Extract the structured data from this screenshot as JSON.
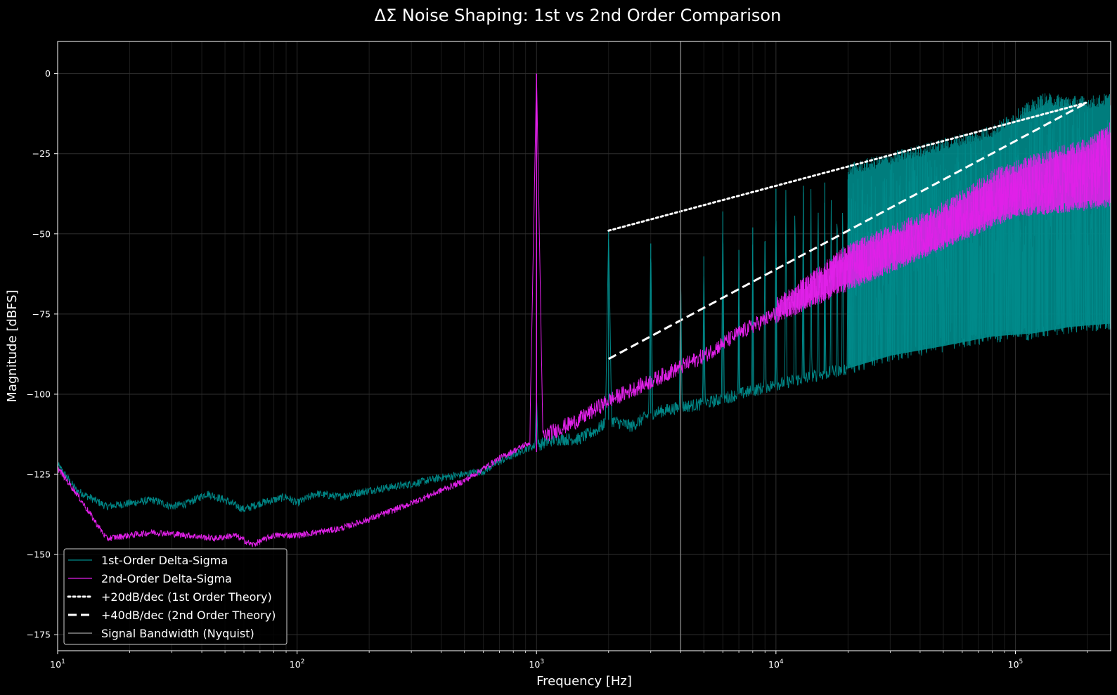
{
  "chart_data": {
    "type": "line",
    "title": "ΔΣ Noise Shaping: 1st vs 2nd Order Comparison",
    "xlabel": "Frequency [Hz]",
    "ylabel": "Magnitude [dBFS]",
    "xscale": "log",
    "xlim": [
      10,
      250000
    ],
    "ylim": [
      -180,
      10
    ],
    "grid": true,
    "legend_position": "lower-left",
    "y_ticks": [
      {
        "value": 0,
        "label": "0"
      },
      {
        "value": -25,
        "label": "−25"
      },
      {
        "value": -50,
        "label": "−50"
      },
      {
        "value": -75,
        "label": "−75"
      },
      {
        "value": -100,
        "label": "−100"
      },
      {
        "value": -125,
        "label": "−125"
      },
      {
        "value": -150,
        "label": "−150"
      },
      {
        "value": -175,
        "label": "−175"
      }
    ],
    "x_ticks": [
      {
        "value": 10,
        "base": "10",
        "exp": "1"
      },
      {
        "value": 100,
        "base": "10",
        "exp": "2"
      },
      {
        "value": 1000,
        "base": "10",
        "exp": "3"
      },
      {
        "value": 10000,
        "base": "10",
        "exp": "4"
      },
      {
        "value": 100000,
        "base": "10",
        "exp": "5"
      }
    ],
    "series": [
      {
        "name": "1st-Order Delta-Sigma",
        "style": "solid",
        "color": "#008b8b",
        "signal_freq": 1000,
        "baseline": [
          [
            10,
            -122
          ],
          [
            12,
            -130
          ],
          [
            16,
            -135
          ],
          [
            20,
            -134
          ],
          [
            25,
            -133
          ],
          [
            30,
            -135
          ],
          [
            35,
            -134
          ],
          [
            42,
            -131
          ],
          [
            50,
            -133
          ],
          [
            60,
            -136
          ],
          [
            70,
            -134
          ],
          [
            90,
            -132
          ],
          [
            100,
            -134
          ],
          [
            120,
            -131
          ],
          [
            150,
            -132
          ],
          [
            200,
            -130
          ],
          [
            300,
            -128
          ],
          [
            400,
            -126
          ],
          [
            500,
            -125
          ],
          [
            600,
            -124
          ],
          [
            700,
            -121
          ],
          [
            800,
            -119
          ],
          [
            900,
            -117
          ],
          [
            1000,
            -116
          ],
          [
            1200,
            -114
          ],
          [
            1500,
            -114
          ],
          [
            1800,
            -111
          ],
          [
            2000,
            -108
          ],
          [
            2500,
            -110
          ],
          [
            3000,
            -106
          ],
          [
            4000,
            -104
          ],
          [
            5000,
            -103
          ],
          [
            7000,
            -100
          ],
          [
            10000,
            -97
          ],
          [
            15000,
            -94
          ],
          [
            20000,
            -92
          ],
          [
            30000,
            -88
          ],
          [
            50000,
            -85
          ],
          [
            80000,
            -82
          ],
          [
            120000,
            -81
          ],
          [
            170000,
            -79
          ],
          [
            250000,
            -78
          ]
        ],
        "envelope_top": [
          [
            2000,
            -48
          ],
          [
            3000,
            -52
          ],
          [
            5000,
            -50
          ],
          [
            7000,
            -46
          ],
          [
            10000,
            -35
          ],
          [
            20000,
            -30
          ],
          [
            40000,
            -24
          ],
          [
            80000,
            -18
          ],
          [
            130000,
            -8
          ],
          [
            200000,
            -9
          ],
          [
            250000,
            -8
          ]
        ],
        "harmonic_peaks": [
          [
            2000,
            -49
          ],
          [
            3000,
            -53
          ],
          [
            4000,
            -60
          ],
          [
            5000,
            -57
          ],
          [
            6000,
            -43
          ],
          [
            7000,
            -55
          ],
          [
            8000,
            -48
          ],
          [
            10000,
            -36
          ],
          [
            13000,
            -35
          ],
          [
            16000,
            -34
          ],
          [
            20000,
            -33
          ],
          [
            25000,
            -32
          ],
          [
            30000,
            -30
          ],
          [
            40000,
            -26
          ],
          [
            50000,
            -25
          ],
          [
            65000,
            -22
          ],
          [
            80000,
            -20
          ],
          [
            100000,
            -16
          ],
          [
            130000,
            -8
          ],
          [
            160000,
            -10
          ],
          [
            200000,
            -12
          ]
        ]
      },
      {
        "name": "2nd-Order Delta-Sigma",
        "style": "solid",
        "color": "#e020e8",
        "signal_freq": 1000,
        "signal_peak": 0,
        "baseline": [
          [
            10,
            -123
          ],
          [
            12,
            -131
          ],
          [
            16,
            -145
          ],
          [
            20,
            -144
          ],
          [
            25,
            -143
          ],
          [
            35,
            -144
          ],
          [
            45,
            -145
          ],
          [
            55,
            -144
          ],
          [
            65,
            -147
          ],
          [
            80,
            -144
          ],
          [
            100,
            -144
          ],
          [
            150,
            -142
          ],
          [
            200,
            -139
          ],
          [
            300,
            -134
          ],
          [
            400,
            -130
          ],
          [
            500,
            -127
          ],
          [
            700,
            -120
          ],
          [
            1000,
            -114
          ],
          [
            1500,
            -108
          ],
          [
            2000,
            -102
          ],
          [
            3000,
            -96
          ],
          [
            5000,
            -88
          ],
          [
            7000,
            -81
          ],
          [
            10000,
            -75
          ],
          [
            15000,
            -67
          ],
          [
            20000,
            -61
          ],
          [
            30000,
            -54
          ],
          [
            50000,
            -45
          ],
          [
            70000,
            -39
          ],
          [
            100000,
            -35
          ],
          [
            150000,
            -33
          ],
          [
            250000,
            -32
          ]
        ],
        "envelope_top": [
          [
            10000,
            -70
          ],
          [
            20000,
            -53
          ],
          [
            50000,
            -40
          ],
          [
            80000,
            -30
          ],
          [
            120000,
            -25
          ],
          [
            200000,
            -20
          ],
          [
            250000,
            -15
          ]
        ],
        "envelope_bottom": [
          [
            10000,
            -78
          ],
          [
            20000,
            -68
          ],
          [
            50000,
            -55
          ],
          [
            100000,
            -45
          ],
          [
            250000,
            -42
          ]
        ]
      },
      {
        "name": "+20dB/dec (1st Order Theory)",
        "style": "dotted",
        "color": "#ffffff",
        "points": [
          [
            2000,
            -49
          ],
          [
            200000,
            -9
          ]
        ]
      },
      {
        "name": "+40dB/dec (2nd Order Theory)",
        "style": "dashed",
        "color": "#ffffff",
        "points": [
          [
            2000,
            -89
          ],
          [
            200000,
            -9
          ]
        ]
      },
      {
        "name": "Signal Bandwidth (Nyquist)",
        "style": "vline",
        "color": "#888888",
        "x": 4000
      }
    ]
  }
}
